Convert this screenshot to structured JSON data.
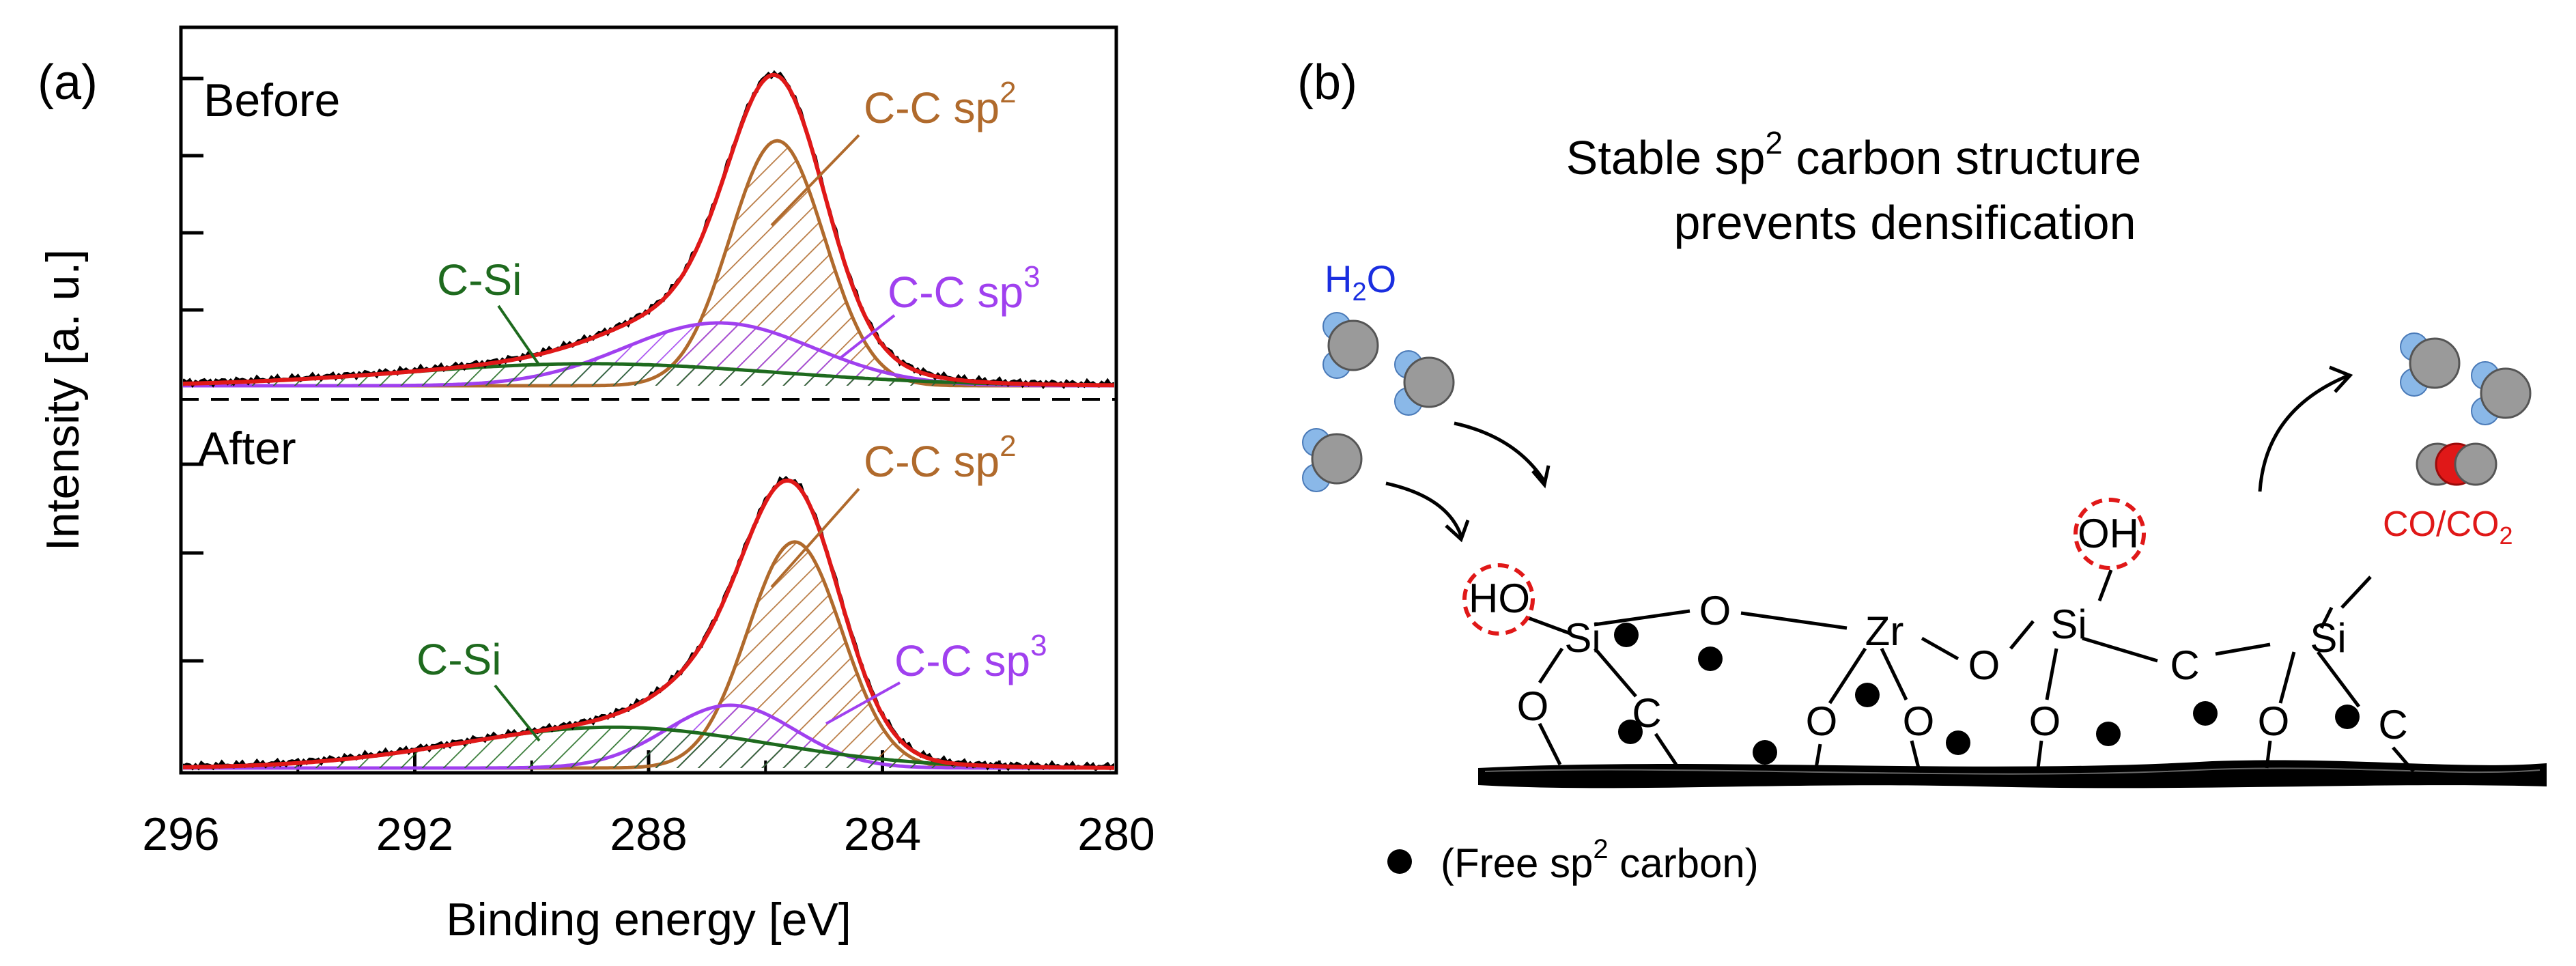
{
  "panel_a": {
    "label": "(a)"
  },
  "panel_b": {
    "label": "(b)"
  },
  "colors": {
    "total": "#e01818",
    "raw": "#000000",
    "sp2": "#b06a2c",
    "sp3": "#a040ef",
    "csi": "#1e6a1e",
    "water_o": "#9a9a9a",
    "water_h": "#8ab8e8",
    "oh_ring": "#e01818",
    "h2o_label": "#1a2ee0",
    "co_label": "#e01818"
  },
  "chart_data": {
    "type": "line",
    "title": "",
    "xlabel": "Binding energy [eV]",
    "ylabel": "Intensity [a. u.]",
    "xlim": [
      296,
      280
    ],
    "xticks": [
      "296",
      "292",
      "288",
      "284",
      "280"
    ],
    "x_tick_values": [
      296,
      292,
      288,
      284,
      280
    ],
    "panels": [
      {
        "name": "Before",
        "series": [
          {
            "name": "C-C sp2",
            "type": "gaussian",
            "center": 285.8,
            "fwhm": 1.9,
            "height": 0.78
          },
          {
            "name": "C-C sp3",
            "type": "gaussian",
            "center": 286.8,
            "fwhm": 3.8,
            "height": 0.2
          },
          {
            "name": "C-Si",
            "type": "gaussian",
            "center": 289.0,
            "fwhm": 7.5,
            "height": 0.07
          }
        ],
        "annotations": [
          {
            "text": "C-C sp",
            "sup": "2"
          },
          {
            "text": "C-C sp",
            "sup": "3"
          },
          {
            "text": "C-Si",
            "sup": ""
          }
        ]
      },
      {
        "name": "After",
        "series": [
          {
            "name": "C-C sp2",
            "type": "gaussian",
            "center": 285.5,
            "fwhm": 1.9,
            "height": 0.72
          },
          {
            "name": "C-C sp3",
            "type": "gaussian",
            "center": 286.6,
            "fwhm": 2.6,
            "height": 0.2
          },
          {
            "name": "C-Si",
            "type": "gaussian",
            "center": 288.6,
            "fwhm": 6.2,
            "height": 0.13
          }
        ],
        "annotations": [
          {
            "text": "C-C sp",
            "sup": "2"
          },
          {
            "text": "C-C sp",
            "sup": "3"
          },
          {
            "text": "C-Si",
            "sup": ""
          }
        ]
      }
    ]
  },
  "diagram": {
    "title_line1_pre": "Stable sp",
    "title_line1_sup": "2",
    "title_line1_post": " carbon structure",
    "title_line2": "prevents densification",
    "h2o_main": "H",
    "h2o_sub": "2",
    "h2o_post": "O",
    "co_main": "CO/CO",
    "co_sub": "2",
    "atoms": {
      "ho": "HO",
      "oh": "OH",
      "si": "Si",
      "zr": "Zr",
      "o": "O",
      "c": "C"
    },
    "legend_pre": "(Free sp",
    "legend_sup": "2",
    "legend_post": " carbon)"
  }
}
